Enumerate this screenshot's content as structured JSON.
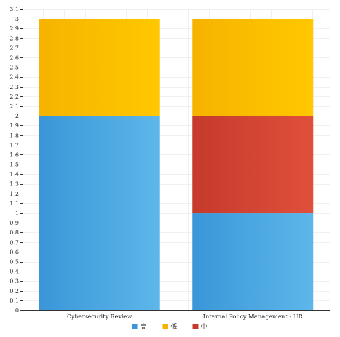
{
  "chart_data": {
    "type": "bar",
    "stacked": true,
    "categories": [
      "Cybersecurity Review",
      "Internal Policy Management - HR"
    ],
    "series": [
      {
        "name": "高",
        "values": [
          2,
          1
        ],
        "color": "#3a96d8",
        "color_light": "#5db7ea"
      },
      {
        "name": "中",
        "values": [
          0,
          1
        ],
        "color": "#c63a2c",
        "color_light": "#e04f3b"
      },
      {
        "name": "低",
        "values": [
          1,
          1
        ],
        "color": "#f6b300",
        "color_light": "#ffc800"
      }
    ],
    "legend_order": [
      "高",
      "低",
      "中"
    ],
    "ylim": [
      0,
      3.1
    ],
    "ytick_step": 0.1,
    "ytick_labels": [
      "0",
      "0.1",
      "0.2",
      "0.3",
      "0.4",
      "0.5",
      "0.6",
      "0.7",
      "0.8",
      "0.9",
      "1",
      "1.1",
      "1.2",
      "1.3",
      "1.4",
      "1.5",
      "1.6",
      "1.7",
      "1.8",
      "1.9",
      "2",
      "2.1",
      "2.2",
      "2.3",
      "2.4",
      "2.5",
      "2.6",
      "2.7",
      "2.8",
      "2.9",
      "3",
      "3.1"
    ],
    "title": "",
    "xlabel": "",
    "ylabel": "",
    "grid": true,
    "legend_position": "bottom-center"
  }
}
